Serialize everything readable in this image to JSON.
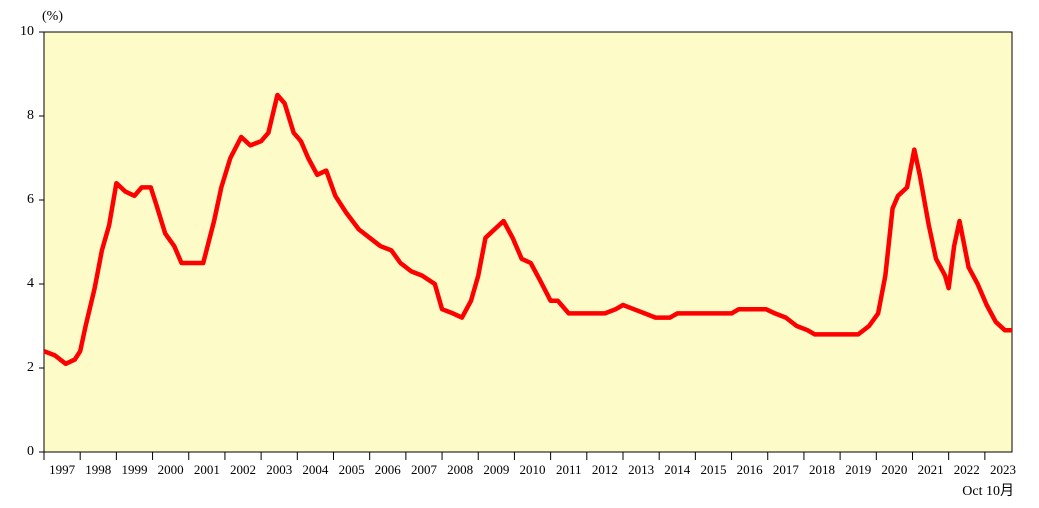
{
  "chart_data": {
    "type": "line",
    "y_label": "(%)",
    "x_end_label": "Oct 10月",
    "background": "#fdfbc8",
    "xlim": [
      1997,
      2023.75
    ],
    "xticks": [
      1997,
      1998,
      1999,
      2000,
      2001,
      2002,
      2003,
      2004,
      2005,
      2006,
      2007,
      2008,
      2009,
      2010,
      2011,
      2012,
      2013,
      2014,
      2015,
      2016,
      2017,
      2018,
      2019,
      2020,
      2021,
      2022,
      2023
    ],
    "ylim": [
      0,
      10
    ],
    "yticks": [
      0,
      2,
      4,
      6,
      8,
      10
    ],
    "x": [
      1997.0,
      1997.3,
      1997.6,
      1997.85,
      1998.0,
      1998.15,
      1998.4,
      1998.6,
      1998.8,
      1999.0,
      1999.25,
      1999.5,
      1999.7,
      1999.95,
      2000.1,
      2000.35,
      2000.6,
      2000.8,
      2001.0,
      2001.4,
      2001.7,
      2001.9,
      2002.15,
      2002.45,
      2002.7,
      2003.0,
      2003.2,
      2003.45,
      2003.65,
      2003.9,
      2004.1,
      2004.3,
      2004.55,
      2004.8,
      2005.05,
      2005.35,
      2005.7,
      2006.0,
      2006.3,
      2006.6,
      2006.85,
      2007.15,
      2007.45,
      2007.8,
      2008.0,
      2008.3,
      2008.55,
      2008.8,
      2009.0,
      2009.2,
      2009.45,
      2009.7,
      2009.95,
      2010.2,
      2010.45,
      2010.7,
      2011.0,
      2011.2,
      2011.5,
      2011.8,
      2012.1,
      2012.5,
      2012.8,
      2013.0,
      2013.3,
      2013.6,
      2013.9,
      2014.3,
      2014.5,
      2015.0,
      2015.5,
      2016.0,
      2016.2,
      2016.6,
      2016.95,
      2017.2,
      2017.5,
      2017.8,
      2018.1,
      2018.3,
      2018.8,
      2019.2,
      2019.5,
      2019.8,
      2020.05,
      2020.25,
      2020.45,
      2020.6,
      2020.85,
      2021.05,
      2021.2,
      2021.45,
      2021.65,
      2021.9,
      2022.0,
      2022.15,
      2022.3,
      2022.55,
      2022.8,
      2023.05,
      2023.3,
      2023.55,
      2023.75
    ],
    "series": [
      {
        "color": "#ff0000",
        "values": [
          2.4,
          2.3,
          2.1,
          2.2,
          2.4,
          3.0,
          3.9,
          4.8,
          5.4,
          6.4,
          6.2,
          6.1,
          6.3,
          6.3,
          5.9,
          5.2,
          4.9,
          4.5,
          4.5,
          4.5,
          5.5,
          6.3,
          7.0,
          7.5,
          7.3,
          7.4,
          7.6,
          8.5,
          8.3,
          7.6,
          7.4,
          7.0,
          6.6,
          6.7,
          6.1,
          5.7,
          5.3,
          5.1,
          4.9,
          4.8,
          4.5,
          4.3,
          4.2,
          4.0,
          3.4,
          3.3,
          3.2,
          3.6,
          4.2,
          5.1,
          5.3,
          5.5,
          5.1,
          4.6,
          4.5,
          4.1,
          3.6,
          3.6,
          3.3,
          3.3,
          3.3,
          3.3,
          3.4,
          3.5,
          3.4,
          3.3,
          3.2,
          3.2,
          3.3,
          3.3,
          3.3,
          3.3,
          3.4,
          3.4,
          3.4,
          3.3,
          3.2,
          3.0,
          2.9,
          2.8,
          2.8,
          2.8,
          2.8,
          3.0,
          3.3,
          4.2,
          5.8,
          6.1,
          6.3,
          7.2,
          6.6,
          5.4,
          4.6,
          4.2,
          3.9,
          4.9,
          5.5,
          4.4,
          4.0,
          3.5,
          3.1,
          2.9,
          2.9
        ]
      }
    ]
  }
}
